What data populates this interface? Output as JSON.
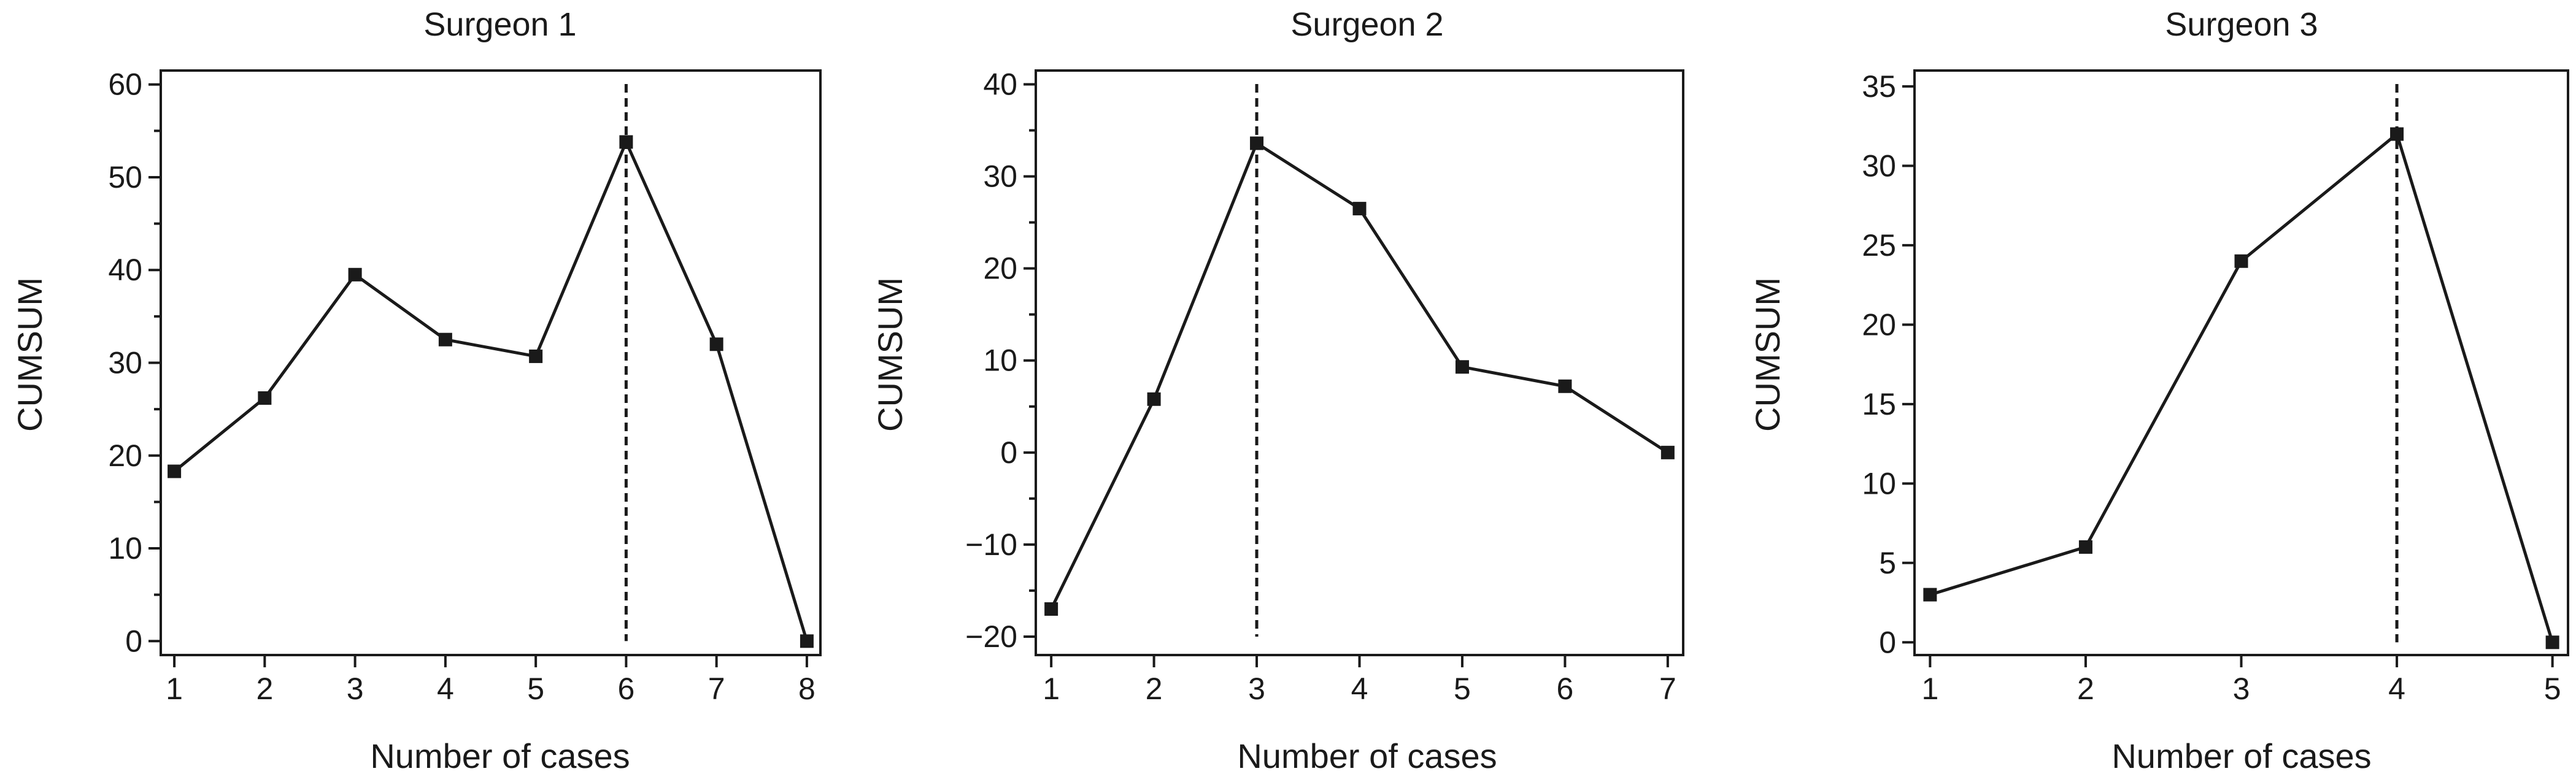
{
  "chart_data": [
    {
      "type": "line",
      "title": "Surgeon 1",
      "xlabel": "Number of cases",
      "ylabel": "CUMSUM",
      "x": [
        1,
        2,
        3,
        4,
        5,
        6,
        7,
        8
      ],
      "values": [
        18.3,
        26.2,
        39.5,
        32.5,
        30.7,
        53.8,
        32.0,
        0.0
      ],
      "xlim": [
        0.85,
        8.15
      ],
      "ylim": [
        -1.5,
        61.5
      ],
      "xticks": [
        1,
        2,
        3,
        4,
        5,
        6,
        7,
        8
      ],
      "yticks": [
        0,
        10,
        20,
        30,
        40,
        50,
        60
      ],
      "yminor": [
        5,
        15,
        25,
        35,
        45,
        55
      ],
      "vline": 6,
      "grid": false,
      "legend": "none",
      "marker": "square"
    },
    {
      "type": "line",
      "title": "Surgeon 2",
      "xlabel": "Number of cases",
      "ylabel": "CUMSUM",
      "x": [
        1,
        2,
        3,
        4,
        5,
        6,
        7
      ],
      "values": [
        -17.0,
        5.8,
        33.6,
        26.5,
        9.3,
        7.2,
        0.0
      ],
      "xlim": [
        0.85,
        7.15
      ],
      "ylim": [
        -22,
        41.5
      ],
      "xticks": [
        1,
        2,
        3,
        4,
        5,
        6,
        7
      ],
      "yticks": [
        -20,
        -10,
        0,
        10,
        20,
        30,
        40
      ],
      "yminor": [
        -15,
        -5,
        5,
        15,
        25,
        35
      ],
      "vline": 3,
      "grid": false,
      "legend": "none",
      "marker": "square"
    },
    {
      "type": "line",
      "title": "Surgeon 3",
      "xlabel": "Number of cases",
      "ylabel": "CUMSUM",
      "x": [
        1,
        2,
        3,
        4,
        5
      ],
      "values": [
        3.0,
        6.0,
        24.0,
        32.0,
        0.0
      ],
      "xlim": [
        0.9,
        5.1
      ],
      "ylim": [
        -0.8,
        36
      ],
      "xticks": [
        1,
        2,
        3,
        4,
        5
      ],
      "yticks": [
        0,
        5,
        10,
        15,
        20,
        25,
        30,
        35
      ],
      "yminor": [],
      "vline": 4,
      "grid": false,
      "legend": "none",
      "marker": "square"
    }
  ]
}
